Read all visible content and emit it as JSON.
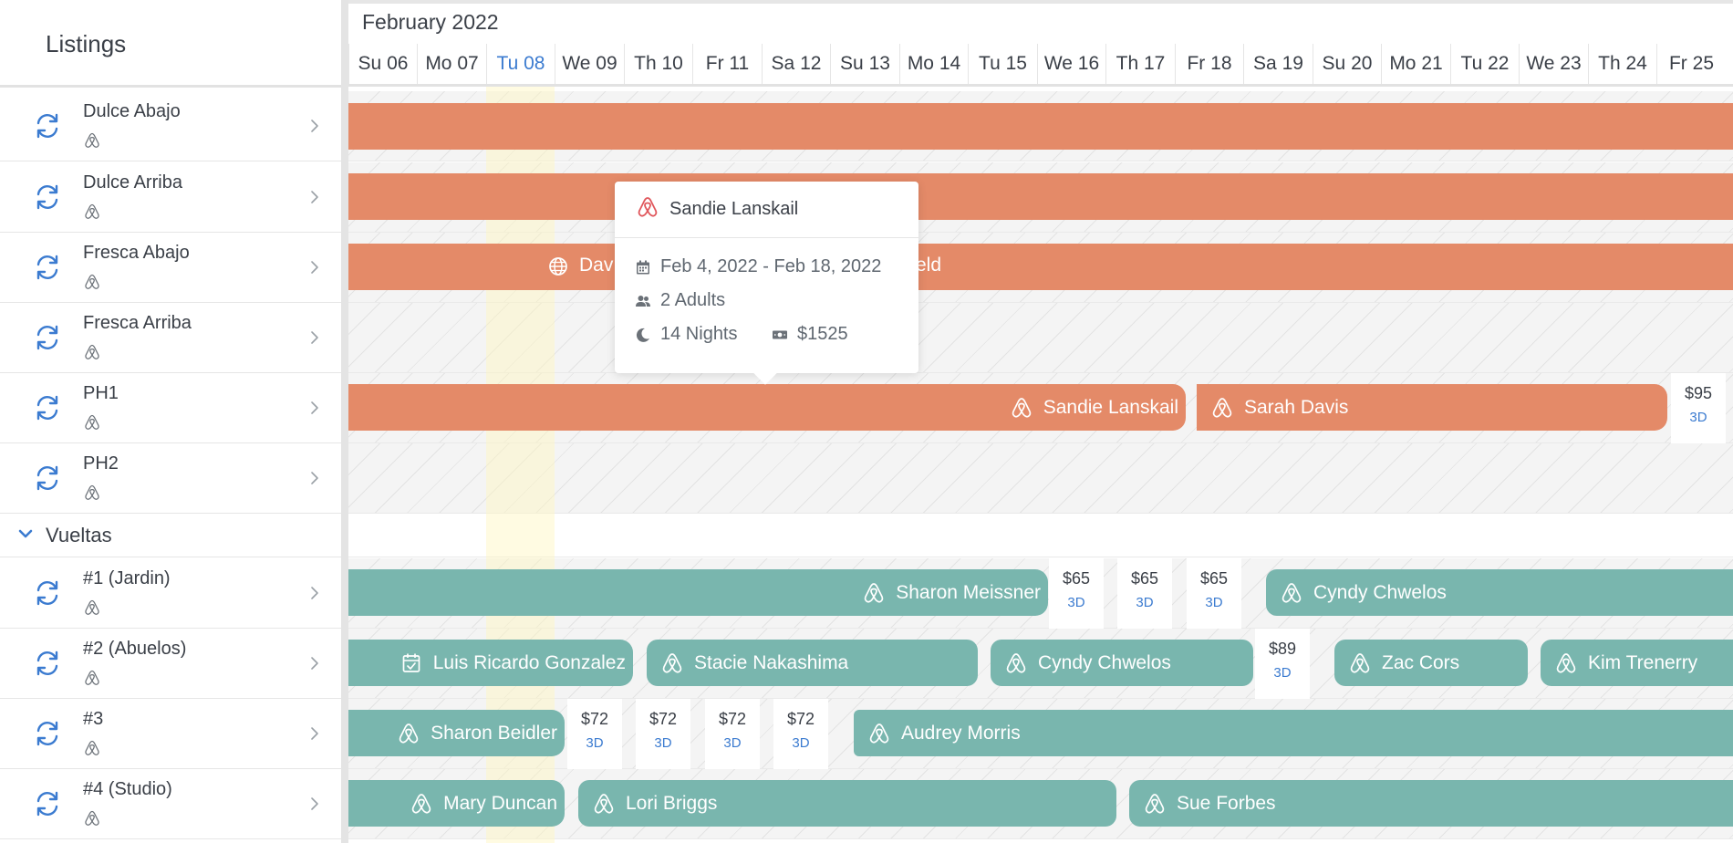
{
  "sidebar": {
    "title": "Listings",
    "listings": [
      {
        "name": "Dulce Abajo",
        "icon": "airbnb-icon"
      },
      {
        "name": "Dulce Arriba",
        "icon": "airbnb-icon"
      },
      {
        "name": "Fresca Abajo",
        "icon": "airbnb-icon"
      },
      {
        "name": "Fresca Arriba",
        "icon": "airbnb-icon"
      },
      {
        "name": "PH1",
        "icon": "airbnb-icon"
      },
      {
        "name": "PH2",
        "icon": "airbnb-icon"
      }
    ],
    "group": {
      "name": "Vueltas"
    },
    "group_listings": [
      {
        "name": "#1 (Jardin)",
        "icon": "airbnb-icon"
      },
      {
        "name": "#2 (Abuelos)",
        "icon": "airbnb-icon"
      },
      {
        "name": "#3",
        "icon": "airbnb-icon"
      },
      {
        "name": "#4 (Studio)",
        "icon": "airbnb-icon"
      }
    ]
  },
  "calendar": {
    "month": "February 2022",
    "days": [
      "Su 06",
      "Mo 07",
      "Tu 08",
      "We 09",
      "Th 10",
      "Fr 11",
      "Sa 12",
      "Su 13",
      "Mo 14",
      "Tu 15",
      "We 16",
      "Th 17",
      "Fr 18",
      "Sa 19",
      "Su 20",
      "Mo 21",
      "Tu 22",
      "We 23",
      "Th 24",
      "Fr 25"
    ],
    "today": "Tu 08",
    "reservations": {
      "fresca_abajo": {
        "guest_partial_left": "Dav",
        "guest_partial_right": "eld",
        "icon": "globe-icon"
      },
      "ph1_a": {
        "guest": "Sandie Lanskail",
        "icon": "airbnb-icon"
      },
      "ph1_b": {
        "guest": "Sarah Davis",
        "icon": "airbnb-icon"
      },
      "j1_a": {
        "guest": "Sharon Meissner",
        "icon": "airbnb-icon"
      },
      "j1_b": {
        "guest": "Cyndy Chwelos",
        "icon": "airbnb-icon"
      },
      "a2_a": {
        "guest": "Luis Ricardo Gonzalez",
        "icon": "calendar-check-icon"
      },
      "a2_b": {
        "guest": "Stacie Nakashima",
        "icon": "airbnb-icon"
      },
      "a2_c": {
        "guest": "Cyndy Chwelos",
        "icon": "airbnb-icon"
      },
      "a2_d": {
        "guest": "Zac Cors",
        "icon": "airbnb-icon"
      },
      "a2_e": {
        "guest": "Kim Trenerry",
        "icon": "airbnb-icon"
      },
      "n3_a": {
        "guest": "Sharon Beidler",
        "icon": "airbnb-icon"
      },
      "n3_b": {
        "guest": "Audrey Morris",
        "icon": "airbnb-icon"
      },
      "s4_a": {
        "guest": "Mary Duncan",
        "icon": "airbnb-icon"
      },
      "s4_b": {
        "guest": "Lori Briggs",
        "icon": "airbnb-icon"
      },
      "s4_c": {
        "guest": "Sue Forbes",
        "icon": "airbnb-icon"
      }
    },
    "prices": {
      "ph1": [
        {
          "amount": "$95",
          "min_stay": "3D"
        }
      ],
      "j1": [
        {
          "amount": "$65",
          "min_stay": "3D"
        },
        {
          "amount": "$65",
          "min_stay": "3D"
        },
        {
          "amount": "$65",
          "min_stay": "3D"
        }
      ],
      "a2": [
        {
          "amount": "$89",
          "min_stay": "3D"
        }
      ],
      "n3": [
        {
          "amount": "$72",
          "min_stay": "3D"
        },
        {
          "amount": "$72",
          "min_stay": "3D"
        },
        {
          "amount": "$72",
          "min_stay": "3D"
        },
        {
          "amount": "$72",
          "min_stay": "3D"
        }
      ]
    }
  },
  "tooltip": {
    "guest": "Sandie Lanskail",
    "dates": "Feb 4, 2022 - Feb 18, 2022",
    "guests": "2 Adults",
    "nights": "14 Nights",
    "price": "$1525"
  },
  "colors": {
    "orange_bar": "#e48a68",
    "teal_bar": "#79b6ae",
    "accent_blue": "#3b7bd0",
    "airbnb_red": "#e0565b"
  }
}
